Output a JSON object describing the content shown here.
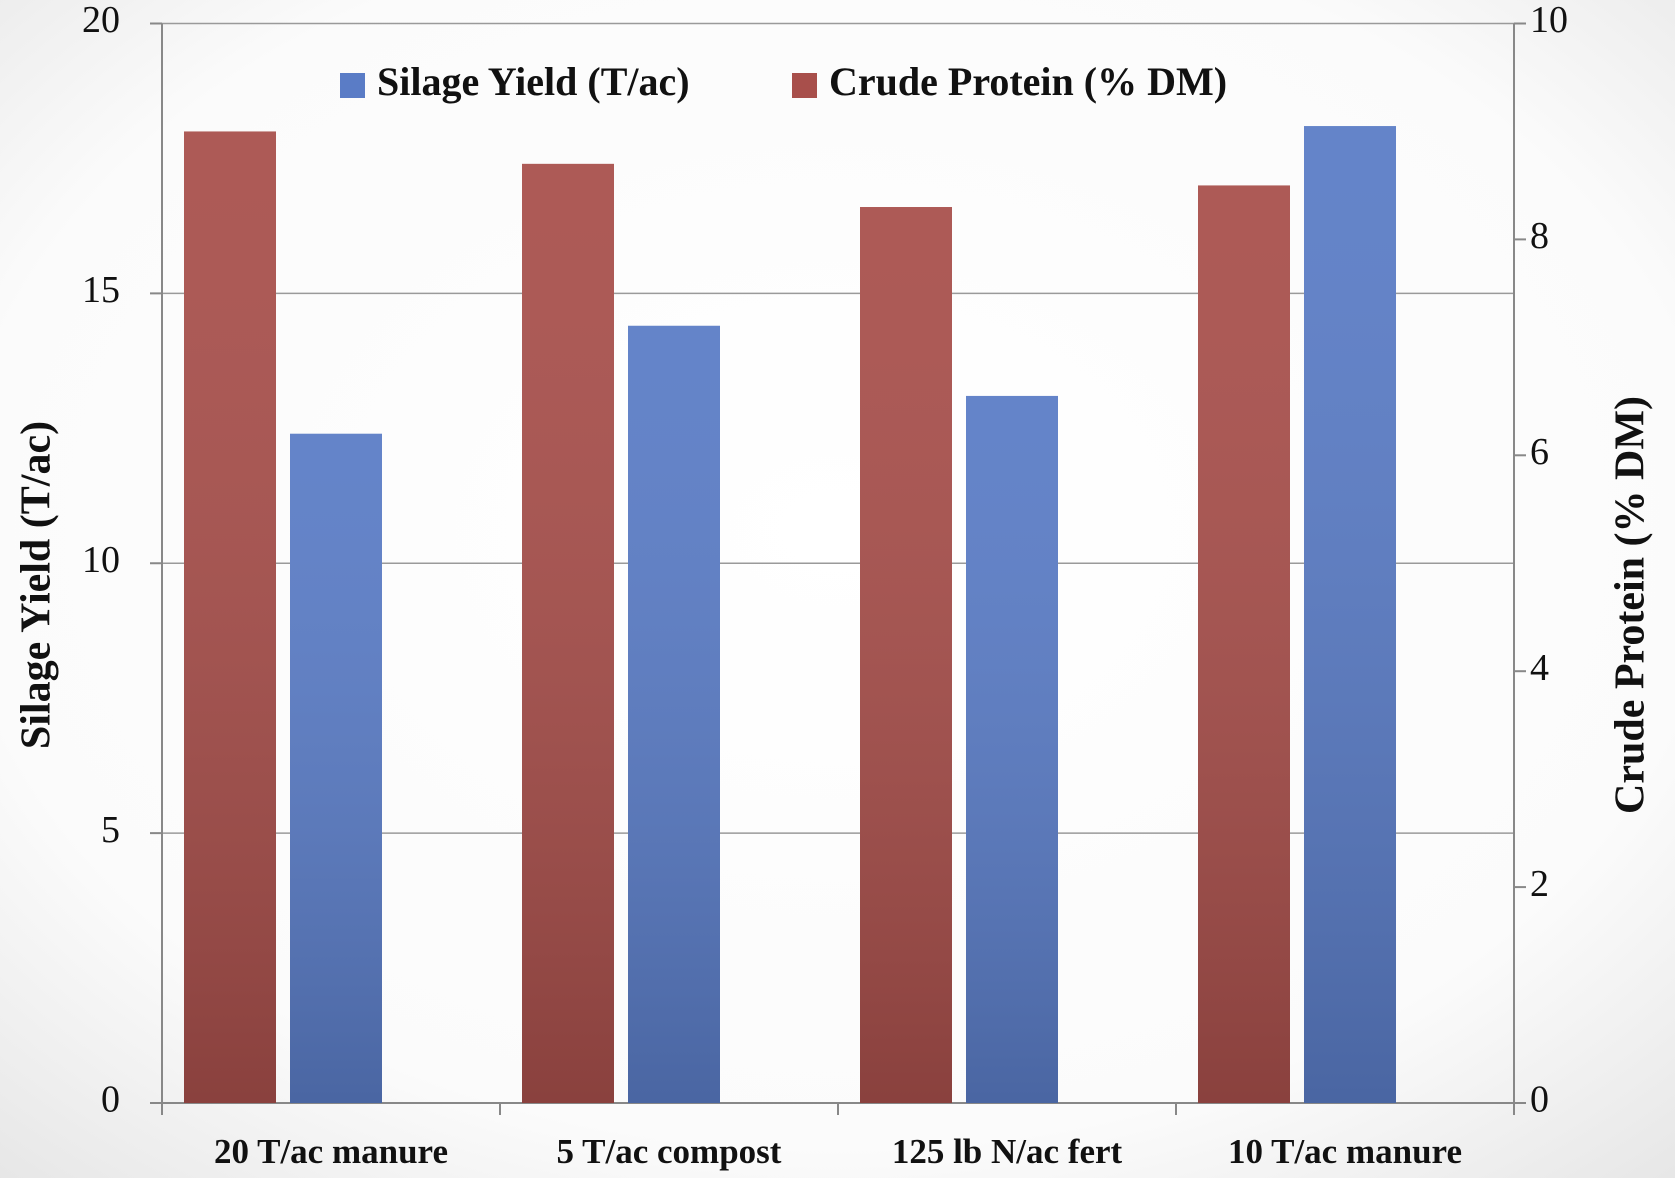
{
  "chart_data": {
    "type": "bar",
    "categories": [
      "20 T/ac manure",
      "5 T/ac compost",
      "125 lb N/ac fert",
      "10 T/ac manure"
    ],
    "series": [
      {
        "name": "Silage Yield (T/ac)",
        "color": "#5a7cc6",
        "values": [
          12.4,
          14.4,
          13.1,
          18.1
        ]
      },
      {
        "name": "Crude Protein (% DM)",
        "color": "#a84f4b",
        "values": [
          9.0,
          8.7,
          8.3,
          8.5
        ],
        "axis": "y2"
      }
    ],
    "ylabel": "Silage Yield (T/ac)",
    "y2label": "Crude Protein (% DM)",
    "ylim": [
      0,
      20
    ],
    "yticks": [
      0,
      5,
      10,
      15,
      20
    ],
    "y2lim": [
      0,
      10
    ],
    "y2ticks": [
      0,
      2,
      4,
      6,
      8,
      10
    ],
    "grid": true,
    "legend": "top"
  }
}
